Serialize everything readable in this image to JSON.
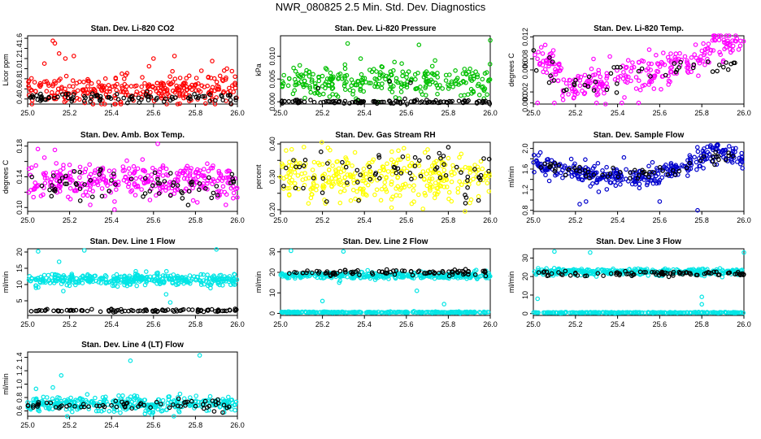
{
  "page": {
    "title": "NWR_080825  2.5 Min. Std. Dev. Diagnostics"
  },
  "chart_data": [
    {
      "type": "scatter",
      "title": "Stan. Dev. Li-820 CO2",
      "xlabel": "",
      "ylabel": "Licor ppm",
      "xlim": [
        25.0,
        26.0
      ],
      "ylim": [
        0.3,
        1.65
      ],
      "xticks": [
        25.0,
        25.2,
        25.4,
        25.6,
        25.8,
        26.0
      ],
      "yticks": [
        0.4,
        0.6,
        0.8,
        1.0,
        1.2,
        1.4,
        1.6
      ],
      "ytick_labels": [
        "0.4",
        "0.6",
        "0.8",
        "1.0",
        "1.2",
        "1.4",
        "1.6"
      ],
      "series": [
        {
          "color": "#ff0000",
          "mean": 0.6,
          "spread": 0.15,
          "n": 300,
          "outliers": [
            [
              25.12,
              1.55
            ],
            [
              25.13,
              1.5
            ],
            [
              25.15,
              1.3
            ],
            [
              25.18,
              1.2
            ],
            [
              25.22,
              1.25
            ],
            [
              25.08,
              1.1
            ],
            [
              25.7,
              1.25
            ],
            [
              25.88,
              1.15
            ],
            [
              25.6,
              1.2
            ],
            [
              25.95,
              1.0
            ]
          ]
        },
        {
          "color": "#000000",
          "mean": 0.43,
          "spread": 0.04,
          "n": 90,
          "outliers": [
            [
              25.65,
              0.35
            ],
            [
              25.97,
              0.3
            ]
          ]
        }
      ]
    },
    {
      "type": "scatter",
      "title": "Stan. Dev. Li-820 Pressure",
      "xlabel": "",
      "ylabel": "kPa",
      "xlim": [
        25.0,
        26.0
      ],
      "ylim": [
        -0.0005,
        0.0145
      ],
      "xticks": [
        25.0,
        25.2,
        25.4,
        25.6,
        25.8,
        26.0
      ],
      "yticks": [
        0.0,
        0.005,
        0.01
      ],
      "ytick_labels": [
        "0.000",
        "0.005",
        "0.010"
      ],
      "series": [
        {
          "color": "#00c000",
          "mean": 0.0045,
          "spread": 0.0018,
          "n": 280,
          "outliers": [
            [
              25.32,
              0.0128
            ],
            [
              25.66,
              0.0125
            ],
            [
              26.0,
              0.0135
            ]
          ]
        },
        {
          "color": "#000000",
          "mean": 0.0,
          "spread": 0.0002,
          "n": 110,
          "outliers": [
            [
              25.52,
              0.0045
            ],
            [
              25.18,
              0.003
            ],
            [
              25.62,
              0.0042
            ]
          ]
        }
      ]
    },
    {
      "type": "scatter",
      "title": "Stan. Dev. Li-820 Temp.",
      "xlabel": "",
      "ylabel": "degrees C",
      "xlim": [
        25.0,
        26.0
      ],
      "ylim": [
        -0.0002,
        0.0122
      ],
      "xticks": [
        25.0,
        25.2,
        25.4,
        25.6,
        25.8,
        26.0
      ],
      "yticks": [
        0.0,
        0.002,
        0.006,
        0.008,
        0.012
      ],
      "ytick_labels": [
        "0.000",
        "0.002",
        "0.006",
        "0.008",
        "0.012"
      ],
      "series": [
        {
          "color": "#ff00ff",
          "trend": [
            [
              25.0,
              0.0085
            ],
            [
              25.1,
              0.006
            ],
            [
              25.2,
              0.003
            ],
            [
              25.4,
              0.0045
            ],
            [
              25.6,
              0.006
            ],
            [
              25.8,
              0.008
            ],
            [
              25.88,
              0.011
            ],
            [
              26.0,
              0.011
            ]
          ],
          "spread": 0.0014,
          "n": 280,
          "outliers": [
            [
              25.02,
              0.0
            ],
            [
              25.1,
              0.0
            ],
            [
              25.3,
              0.0
            ],
            [
              25.42,
              0.0
            ],
            [
              25.5,
              0.0
            ]
          ]
        },
        {
          "color": "#000000",
          "trend": [
            [
              25.0,
              0.0075
            ],
            [
              25.2,
              0.0025
            ],
            [
              25.4,
              0.0045
            ],
            [
              25.6,
              0.006
            ],
            [
              25.75,
              0.007
            ]
          ],
          "spread": 0.0012,
          "n": 45,
          "outliers": []
        }
      ]
    },
    {
      "type": "scatter",
      "title": "Stan. Dev. Amb. Box Temp.",
      "xlabel": "",
      "ylabel": "degrees C",
      "xlim": [
        25.0,
        26.0
      ],
      "ylim": [
        0.095,
        0.185
      ],
      "xticks": [
        25.0,
        25.2,
        25.4,
        25.6,
        25.8,
        26.0
      ],
      "yticks": [
        0.1,
        0.12,
        0.14,
        0.16,
        0.18
      ],
      "ytick_labels": [
        "0.10",
        "",
        "0.14",
        "",
        "0.18"
      ],
      "series": [
        {
          "color": "#ff00ff",
          "mean": 0.135,
          "spread": 0.012,
          "n": 330,
          "outliers": [
            [
              25.62,
              0.183
            ],
            [
              25.13,
              0.175
            ],
            [
              25.08,
              0.165
            ]
          ]
        },
        {
          "color": "#000000",
          "mean": 0.13,
          "spread": 0.01,
          "n": 70,
          "outliers": []
        }
      ]
    },
    {
      "type": "scatter",
      "title": "Stan. Dev. Gas Stream RH",
      "xlabel": "",
      "ylabel": "percent",
      "xlim": [
        25.0,
        26.0
      ],
      "ylim": [
        0.195,
        0.405
      ],
      "xticks": [
        25.0,
        25.2,
        25.4,
        25.6,
        25.8,
        26.0
      ],
      "yticks": [
        0.2,
        0.25,
        0.3,
        0.35,
        0.4
      ],
      "ytick_labels": [
        "0.20",
        "",
        "0.30",
        "",
        "0.40"
      ],
      "series": [
        {
          "color": "#ffff00",
          "mean": 0.3,
          "spread": 0.035,
          "n": 340,
          "outliers": []
        },
        {
          "color": "#000000",
          "mean": 0.31,
          "spread": 0.035,
          "n": 65,
          "outliers": [
            [
              25.8,
              0.39
            ],
            [
              25.22,
              0.225
            ],
            [
              25.88,
              0.245
            ]
          ]
        }
      ]
    },
    {
      "type": "scatter",
      "title": "Stan. Dev. Sample Flow",
      "xlabel": "",
      "ylabel": "ml/min",
      "xlim": [
        25.0,
        26.0
      ],
      "ylim": [
        0.78,
        2.12
      ],
      "xticks": [
        25.0,
        25.2,
        25.4,
        25.6,
        25.8,
        26.0
      ],
      "yticks": [
        0.8,
        1.0,
        1.2,
        1.4,
        1.6,
        1.8,
        2.0
      ],
      "ytick_labels": [
        "0.8",
        "",
        "1.2",
        "",
        "1.6",
        "",
        "2.0"
      ],
      "series": [
        {
          "color": "#0000cc",
          "trend": [
            [
              25.0,
              1.7
            ],
            [
              25.15,
              1.62
            ],
            [
              25.3,
              1.45
            ],
            [
              25.5,
              1.45
            ],
            [
              25.65,
              1.55
            ],
            [
              25.8,
              1.82
            ],
            [
              25.88,
              1.95
            ],
            [
              26.0,
              1.8
            ]
          ],
          "spread": 0.1,
          "n": 330,
          "outliers": [
            [
              25.22,
              0.92
            ],
            [
              25.25,
              0.97
            ],
            [
              25.78,
              0.8
            ],
            [
              25.6,
              0.97
            ]
          ]
        },
        {
          "color": "#000000",
          "trend": [
            [
              25.0,
              1.7
            ],
            [
              25.3,
              1.5
            ],
            [
              25.6,
              1.5
            ],
            [
              25.8,
              1.75
            ],
            [
              26.0,
              1.85
            ]
          ],
          "spread": 0.07,
          "n": 60,
          "outliers": []
        }
      ]
    },
    {
      "type": "scatter",
      "title": "Stan. Dev. Line 1 Flow",
      "xlabel": "",
      "ylabel": "ml/min",
      "xlim": [
        25.0,
        26.0
      ],
      "ylim": [
        0.5,
        21.0
      ],
      "xticks": [
        25.0,
        25.2,
        25.4,
        25.6,
        25.8,
        26.0
      ],
      "yticks": [
        5,
        10,
        15,
        20
      ],
      "ytick_labels": [
        "5",
        "10",
        "15",
        "20"
      ],
      "series": [
        {
          "color": "#00e5e5",
          "mean": 11.5,
          "spread": 0.9,
          "n": 360,
          "outliers": [
            [
              25.05,
              20.2
            ],
            [
              25.27,
              20.5
            ],
            [
              25.9,
              20.8
            ],
            [
              25.15,
              17.0
            ],
            [
              25.68,
              4.5
            ],
            [
              25.66,
              7.0
            ],
            [
              25.17,
              8.0
            ],
            [
              25.04,
              9.0
            ]
          ]
        },
        {
          "color": "#000000",
          "mean": 2.0,
          "spread": 0.2,
          "n": 95,
          "outliers": []
        }
      ]
    },
    {
      "type": "scatter",
      "title": "Stan. Dev. Line 2 Flow",
      "xlabel": "",
      "ylabel": "ml/min",
      "xlim": [
        25.0,
        26.0
      ],
      "ylim": [
        -1.0,
        31.5
      ],
      "xticks": [
        25.0,
        25.2,
        25.4,
        25.6,
        25.8,
        26.0
      ],
      "yticks": [
        0,
        10,
        20,
        30
      ],
      "ytick_labels": [
        "0",
        "10",
        "20",
        "30"
      ],
      "series": [
        {
          "color": "#00e5e5",
          "mean": 18.5,
          "spread": 0.8,
          "n": 330,
          "outliers": [
            [
              25.05,
              30.5
            ],
            [
              25.3,
              30.2
            ],
            [
              25.2,
              6.0
            ],
            [
              25.65,
              11.0
            ],
            [
              25.78,
              4.5
            ],
            [
              25.28,
              15.0
            ]
          ]
        },
        {
          "color": "#00e5e5",
          "mean": 0.5,
          "spread": 0.15,
          "n": 260,
          "outliers": []
        },
        {
          "color": "#000000",
          "mean": 20.0,
          "spread": 0.7,
          "n": 90,
          "outliers": []
        }
      ]
    },
    {
      "type": "scatter",
      "title": "Stan. Dev. Line 3 Flow",
      "xlabel": "",
      "ylabel": "ml/min",
      "xlim": [
        25.0,
        26.0
      ],
      "ylim": [
        -1.0,
        35.0
      ],
      "xticks": [
        25.0,
        25.2,
        25.4,
        25.6,
        25.8,
        26.0
      ],
      "yticks": [
        0,
        10,
        20,
        30
      ],
      "ytick_labels": [
        "0",
        "10",
        "20",
        "30"
      ],
      "series": [
        {
          "color": "#00e5e5",
          "mean": 22.5,
          "spread": 0.9,
          "n": 320,
          "outliers": [
            [
              25.8,
              9.0
            ],
            [
              25.8,
              5.0
            ],
            [
              25.1,
              33.5
            ],
            [
              26.0,
              33.0
            ],
            [
              25.27,
              33.0
            ],
            [
              25.02,
              8.0
            ]
          ]
        },
        {
          "color": "#00e5e5",
          "mean": 0.5,
          "spread": 0.12,
          "n": 270,
          "outliers": []
        },
        {
          "color": "#000000",
          "mean": 21.5,
          "spread": 0.7,
          "n": 90,
          "outliers": []
        }
      ]
    },
    {
      "type": "scatter",
      "title": "Stan. Dev. Line 4 (LT) Flow",
      "xlabel": "",
      "ylabel": "ml/min",
      "xlim": [
        25.0,
        26.0
      ],
      "ylim": [
        0.52,
        1.48
      ],
      "xticks": [
        25.0,
        25.2,
        25.4,
        25.6,
        25.8,
        26.0
      ],
      "yticks": [
        0.6,
        0.8,
        1.0,
        1.2,
        1.4
      ],
      "ytick_labels": [
        "0.6",
        "0.8",
        "1.0",
        "1.2",
        "1.4"
      ],
      "series": [
        {
          "color": "#00e5e5",
          "mean": 0.7,
          "spread": 0.055,
          "n": 340,
          "outliers": [
            [
              25.82,
              1.43
            ],
            [
              25.49,
              1.35
            ],
            [
              25.16,
              1.13
            ],
            [
              25.12,
              0.95
            ],
            [
              25.04,
              0.93
            ]
          ]
        },
        {
          "color": "#000000",
          "mean": 0.68,
          "spread": 0.05,
          "n": 70,
          "outliers": []
        }
      ]
    }
  ]
}
